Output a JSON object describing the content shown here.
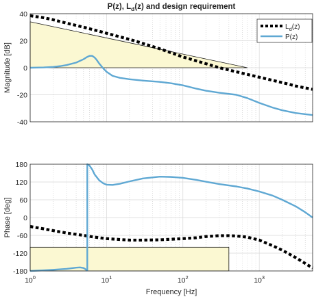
{
  "chart_data": [
    {
      "type": "line",
      "title": "P(z), L_d(z) and design requirement",
      "title_parts": {
        "pre": "P(z), L",
        "sub": "d",
        "post": "(z) and design requirement"
      },
      "xlabel": "",
      "ylabel": "Magnitude [dB]",
      "xscale": "log",
      "xlim": [
        1,
        5000
      ],
      "ylim": [
        -40,
        40
      ],
      "yticks": [
        -40,
        -20,
        0,
        20,
        40
      ],
      "grid": true,
      "legend_position": "top-right",
      "legend": [
        {
          "label": "L_d(z)",
          "parts": {
            "pre": "L",
            "sub": "d",
            "post": "(z)"
          },
          "style": "dotted-black"
        },
        {
          "label": "P(z)",
          "parts": {
            "pre": "P(z)",
            "sub": "",
            "post": ""
          },
          "style": "solid-blue"
        }
      ],
      "requirement_region": {
        "vertices": [
          [
            1,
            34
          ],
          [
            1,
            0
          ],
          [
            700,
            0
          ]
        ],
        "fill": "#fbf8d2",
        "stroke": "#1a1a1a"
      },
      "series": [
        {
          "name": "L_d(z)",
          "color": "#000000",
          "x": [
            1,
            1.5,
            2,
            3,
            5,
            8,
            10,
            20,
            30,
            50,
            100,
            200,
            300,
            500,
            1000,
            2000,
            3000,
            5000
          ],
          "y": [
            38.5,
            37,
            35.5,
            33,
            30,
            27,
            25.5,
            21,
            18,
            14,
            8,
            3,
            0,
            -3,
            -7,
            -11,
            -13.5,
            -16
          ]
        },
        {
          "name": "P(z)",
          "color": "#5fa8d3",
          "x": [
            1,
            1.5,
            2,
            2.5,
            3,
            4,
            5,
            5.5,
            6,
            6.5,
            7,
            7.5,
            8,
            9,
            10,
            12,
            15,
            20,
            30,
            50,
            70,
            100,
            150,
            200,
            300,
            500,
            700,
            1000,
            1500,
            2000,
            3000,
            5000
          ],
          "y": [
            0,
            0.2,
            0.6,
            1.2,
            2,
            3.8,
            6.3,
            7.8,
            8.8,
            8.8,
            7.5,
            5.5,
            3.2,
            -0.3,
            -3,
            -6,
            -7.5,
            -8.5,
            -9.5,
            -10.5,
            -11.5,
            -13,
            -15.5,
            -17,
            -18.5,
            -20,
            -22.5,
            -26,
            -29.5,
            -31.5,
            -33.5,
            -35
          ]
        }
      ]
    },
    {
      "type": "line",
      "title": "",
      "xlabel": "Frequency [Hz]",
      "ylabel": "Phase [deg]",
      "xscale": "log",
      "xlim": [
        1,
        5000
      ],
      "ylim": [
        -180,
        180
      ],
      "yticks": [
        -180,
        -120,
        -60,
        0,
        60,
        120,
        180
      ],
      "xticks": [
        {
          "value": 1,
          "base": "10",
          "exp": "0"
        },
        {
          "value": 10,
          "base": "10",
          "exp": "1"
        },
        {
          "value": 100,
          "base": "10",
          "exp": "2"
        },
        {
          "value": 1000,
          "base": "10",
          "exp": "3"
        }
      ],
      "grid": true,
      "requirement_region": {
        "x": [
          1,
          400
        ],
        "y": [
          -180,
          -100
        ],
        "fill": "#fbf8d2",
        "stroke": "#1a1a1a"
      },
      "series": [
        {
          "name": "L_d(z)",
          "color": "#000000",
          "x": [
            1,
            1.5,
            2,
            3,
            5,
            7,
            10,
            15,
            20,
            30,
            50,
            100,
            150,
            200,
            300,
            400,
            500,
            700,
            1000,
            1500,
            2000,
            3000,
            5000
          ],
          "y": [
            -30,
            -38,
            -44,
            -52,
            -60,
            -66,
            -71,
            -74,
            -76,
            -76,
            -75,
            -71,
            -68,
            -64,
            -61,
            -61,
            -62,
            -66,
            -76,
            -95,
            -110,
            -135,
            -170
          ]
        },
        {
          "name": "P(z)",
          "color": "#5fa8d3",
          "segments": [
            {
              "x": [
                1,
                1.5,
                2,
                3,
                4,
                4.5,
                5,
                5.3,
                5.6
              ],
              "y": [
                -180,
                -178,
                -176,
                -173,
                -169,
                -168,
                -170,
                -174,
                -180
              ]
            },
            {
              "x": [
                5.6,
                5.6,
                6,
                6.5,
                7,
                8,
                9,
                10,
                12,
                15,
                20,
                30,
                50,
                70,
                100,
                150,
                200,
                300,
                500,
                700,
                1000,
                1500,
                2000,
                3000,
                4000,
                5000
              ],
              "y": [
                -180,
                180,
                175,
                162,
                145,
                126,
                116,
                111,
                110,
                114,
                122,
                132,
                138,
                137,
                134,
                127,
                121,
                113,
                105,
                98,
                88,
                74,
                60,
                38,
                18,
                0
              ]
            }
          ]
        }
      ]
    }
  ]
}
